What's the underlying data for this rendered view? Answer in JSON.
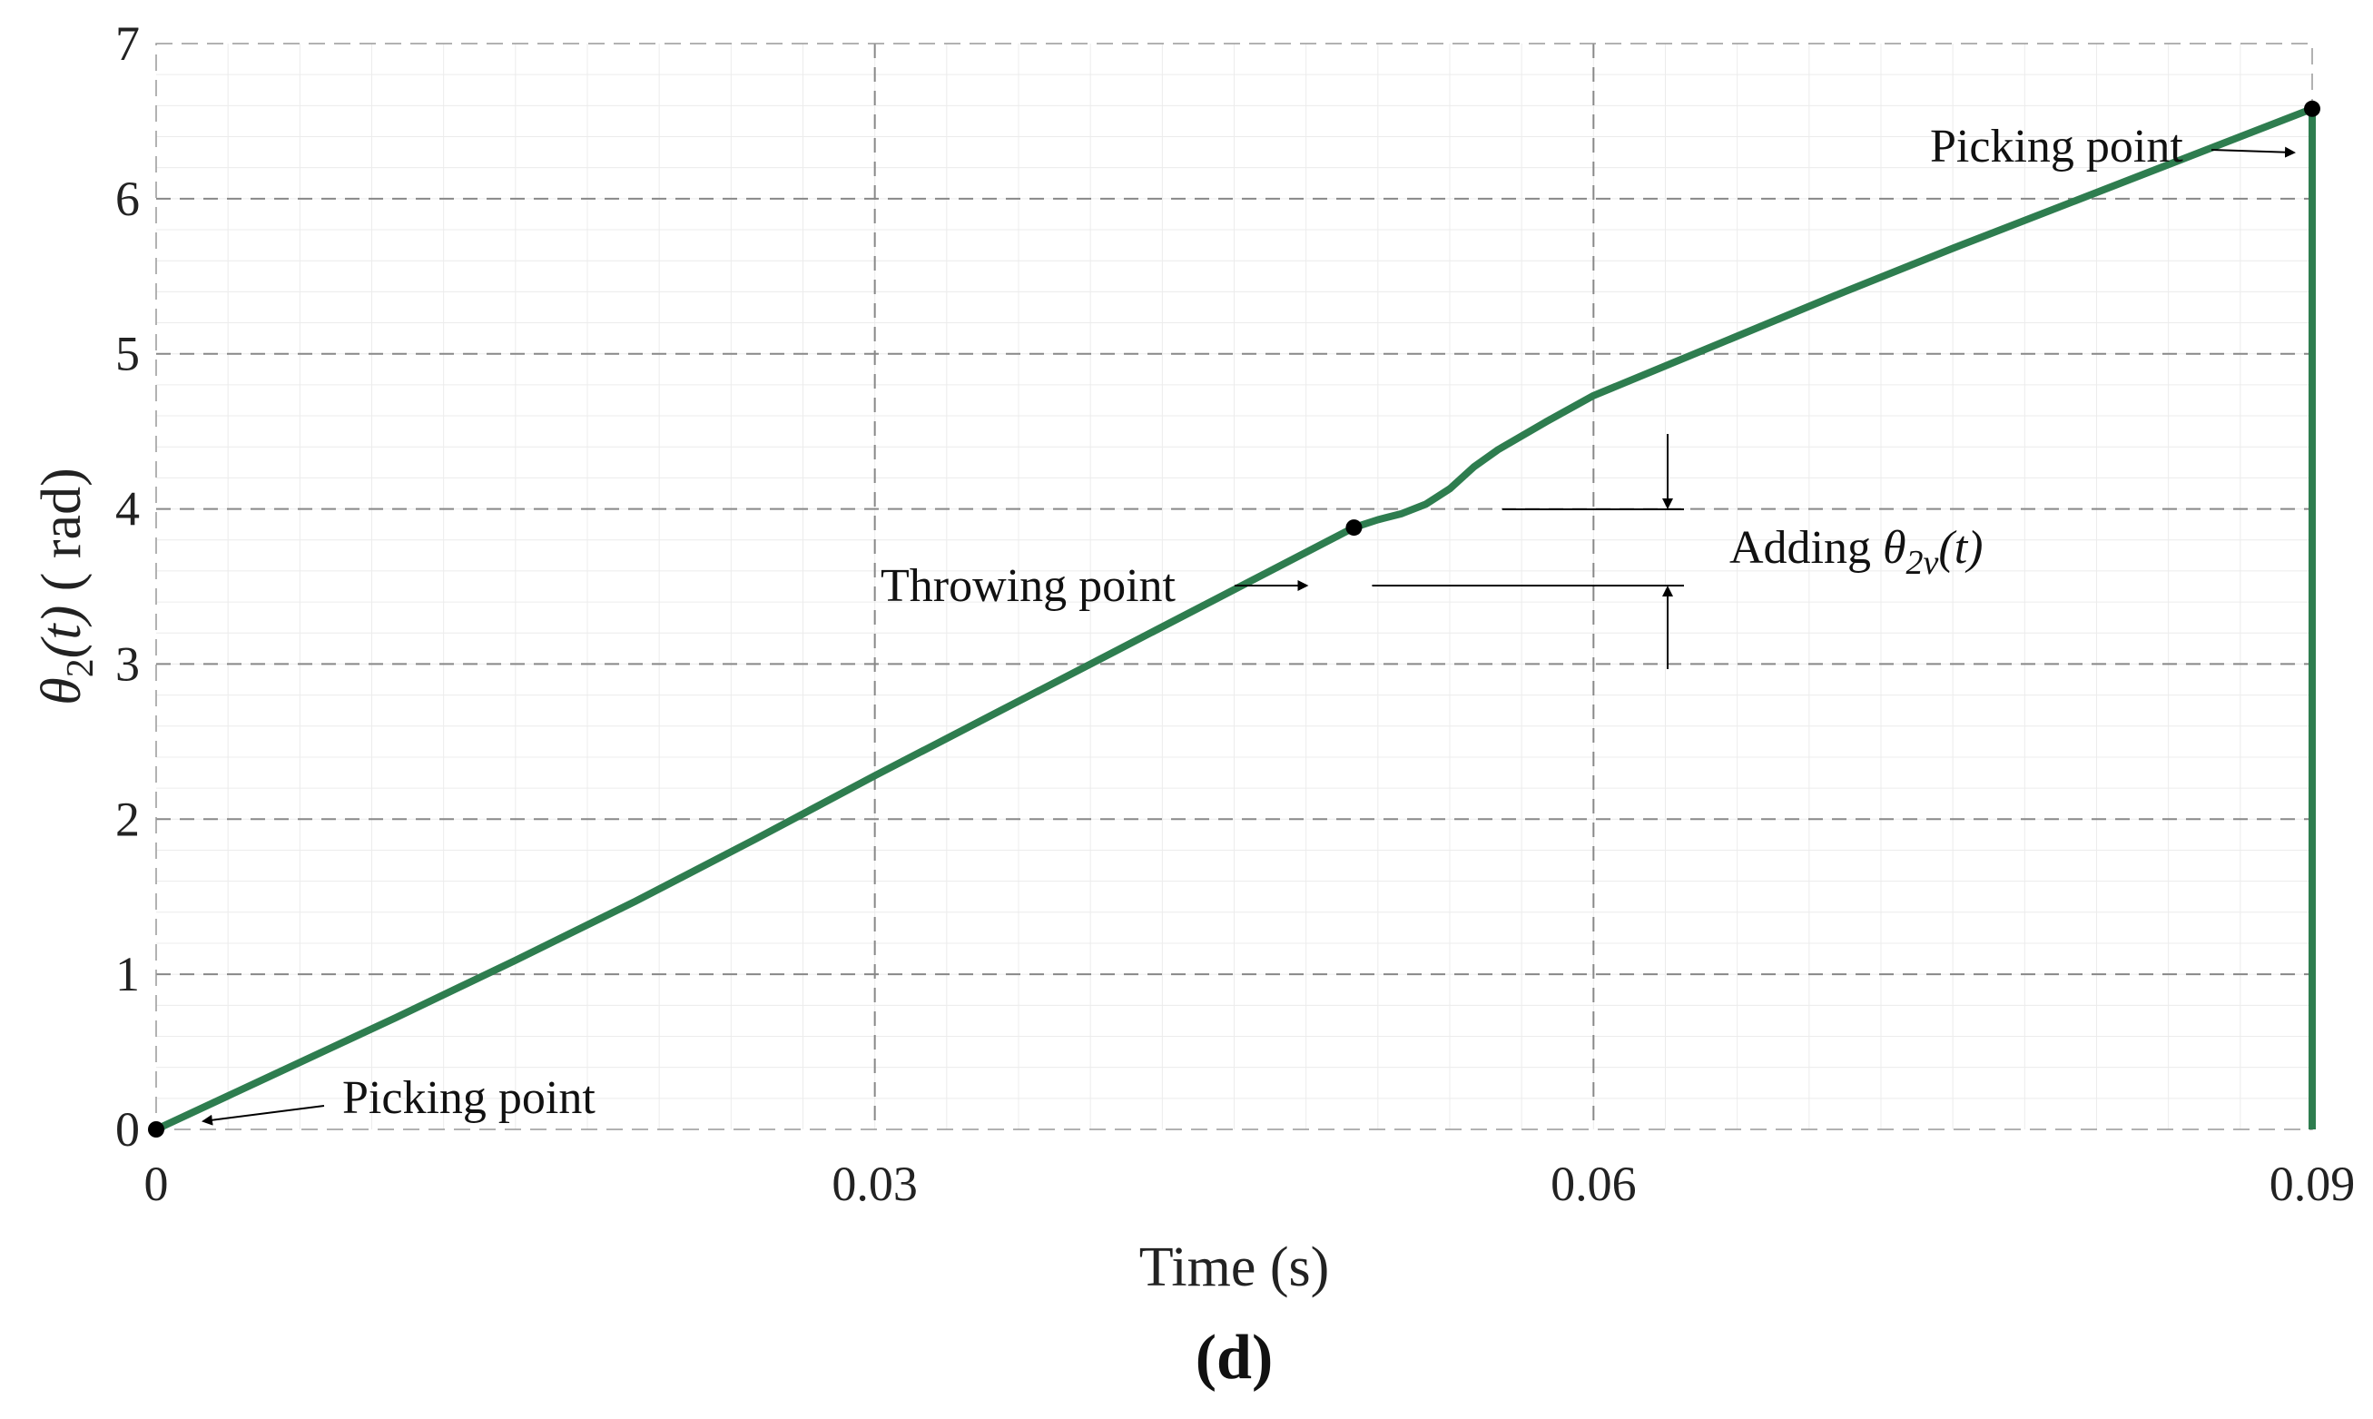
{
  "chart_data": {
    "type": "line",
    "xlabel": "Time (s)",
    "ylabel_symbol": "θ",
    "ylabel_subscript": "2",
    "ylabel_arg": "(t)",
    "ylabel_unit": " ( rad)",
    "panel_label": "(d)",
    "xlim": [
      0,
      0.09
    ],
    "ylim": [
      0,
      7
    ],
    "x_ticks": [
      0,
      0.03,
      0.06,
      0.09
    ],
    "x_tick_labels": [
      "0",
      "0.03",
      "0.06",
      "0.09"
    ],
    "y_ticks": [
      0,
      1,
      2,
      3,
      4,
      5,
      6,
      7
    ],
    "y_tick_labels": [
      "0",
      "1",
      "2",
      "3",
      "4",
      "5",
      "6",
      "7"
    ],
    "grid": true,
    "series": [
      {
        "color": "#2e7d4f",
        "x": [
          0,
          0.005,
          0.01,
          0.015,
          0.02,
          0.025,
          0.03,
          0.035,
          0.04,
          0.045,
          0.05,
          0.051,
          0.052,
          0.053,
          0.054,
          0.055,
          0.056,
          0.058,
          0.06,
          0.065,
          0.07,
          0.075,
          0.08,
          0.085,
          0.09,
          0.09
        ],
        "y": [
          0,
          0.36,
          0.72,
          1.09,
          1.47,
          1.87,
          2.28,
          2.68,
          3.08,
          3.48,
          3.88,
          3.93,
          3.97,
          4.03,
          4.13,
          4.27,
          4.38,
          4.56,
          4.73,
          5.05,
          5.37,
          5.68,
          5.98,
          6.28,
          6.58,
          0
        ]
      }
    ],
    "markers": [
      {
        "x": 0,
        "y": 0
      },
      {
        "x": 0.05,
        "y": 3.88
      },
      {
        "x": 0.09,
        "y": 6.58
      }
    ],
    "annotations": [
      {
        "text": "Picking point"
      },
      {
        "text": "Throwing point"
      },
      {
        "text": "Picking point"
      },
      {
        "text_prefix": "Adding ",
        "symbol": "θ",
        "subscript": "2v",
        "arg": "(t)"
      }
    ]
  }
}
